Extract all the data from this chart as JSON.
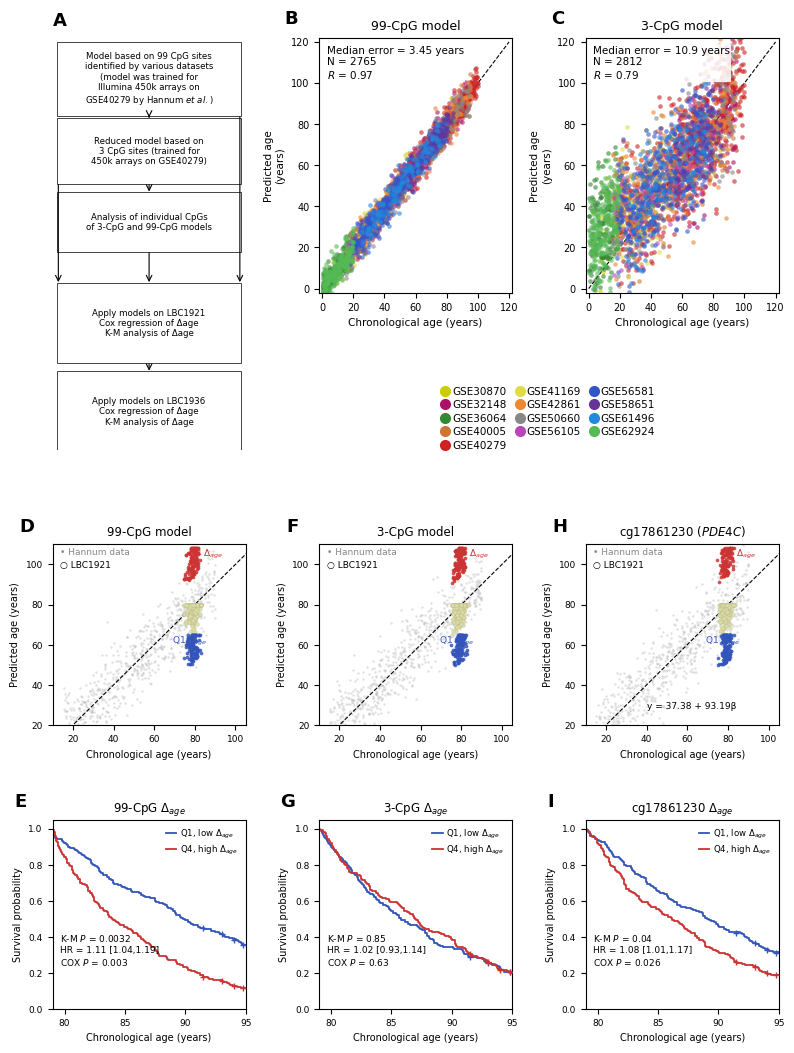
{
  "panel_A_boxes": [
    "Model based on 99 CpG sites\nidentified by various datasets\n(model was trained for\nIllumina 450k arrays on\nGSE40279 by Hannum et al.)",
    "Reduced model based on\n3 CpG sites (trained for\n450k arrays on GSE40279)",
    "Analysis of individual CpGs\nof 3-CpG and 99-CpG models",
    "Apply models on LBC1921\nCox regression of Δage\nK-M analysis of Δage",
    "Apply models on LBC1936\nCox regression of Δage\nK-M analysis of Δage"
  ],
  "panel_B_title": "99-CpG model",
  "panel_C_title": "3-CpG model",
  "datasets": {
    "GSE30870": "#cccc00",
    "GSE32148": "#aa1166",
    "GSE36064": "#338833",
    "GSE40005": "#cc7733",
    "GSE40279": "#cc2222",
    "GSE41169": "#dddd44",
    "GSE42861": "#ee8833",
    "GSE50660": "#888888",
    "GSE56105": "#bb44bb",
    "GSE56581": "#3355cc",
    "GSE58651": "#663399",
    "GSE61496": "#2288dd",
    "GSE62924": "#55bb55"
  },
  "panel_D_title": "99-CpG model",
  "panel_F_title": "3-CpG model",
  "panel_H_eq": "y = 37.38 + 93.19β",
  "scatter_DFH_xlim": [
    10,
    105
  ],
  "scatter_DFH_ylim": [
    20,
    110
  ],
  "scatter_DFH_xticks": [
    20,
    40,
    60,
    80,
    100
  ],
  "scatter_DFH_yticks": [
    20,
    40,
    60,
    80,
    100
  ],
  "surv_xlim": [
    79,
    95
  ],
  "surv_ylim": [
    0.0,
    1.05
  ],
  "surv_xticks": [
    80,
    85,
    90,
    95
  ],
  "surv_yticks": [
    0.0,
    0.2,
    0.4,
    0.6,
    0.8,
    1.0
  ],
  "color_Q1": "#3355bb",
  "color_Q4": "#cc3333",
  "color_Q2Q3": "#ddddaa",
  "color_hannum": "#bbbbbb",
  "bg_color": "#ffffff"
}
